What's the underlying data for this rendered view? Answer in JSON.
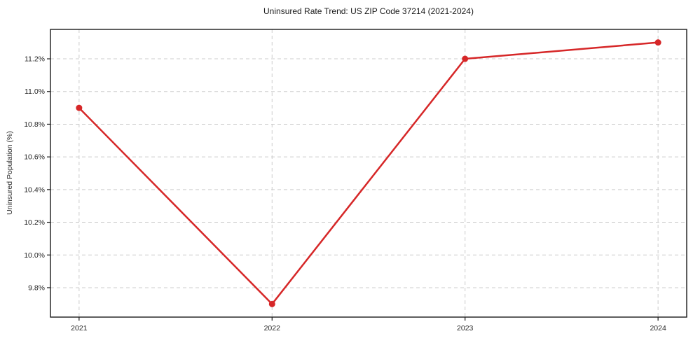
{
  "page": {
    "background": "#ffffff"
  },
  "chart_data": {
    "type": "line",
    "title": "Uninsured Rate Trend: US ZIP Code 37214 (2021-2024)",
    "xlabel": "",
    "ylabel": "Uninsured Population (%)",
    "categories": [
      "2021",
      "2022",
      "2023",
      "2024"
    ],
    "series": [
      {
        "name": "Uninsured Population (%)",
        "values": [
          10.9,
          9.7,
          11.2,
          11.3
        ]
      }
    ],
    "yticks": [
      9.8,
      10.0,
      10.2,
      10.4,
      10.6,
      10.8,
      11.0,
      11.2
    ],
    "ytick_labels": [
      "9.8%",
      "10.0%",
      "10.2%",
      "10.4%",
      "10.6%",
      "10.8%",
      "11.0%",
      "11.2%"
    ],
    "ylim": [
      9.62,
      11.38
    ],
    "grid": true,
    "grid_style": "dashed",
    "legend_position": "none",
    "line_color": "#d62728",
    "marker": "circle",
    "marker_radius": 4.5,
    "line_width": 2.5,
    "grid_color": "#cccccc",
    "axis_color": "#1a1a1a",
    "text_color": "#262626"
  }
}
